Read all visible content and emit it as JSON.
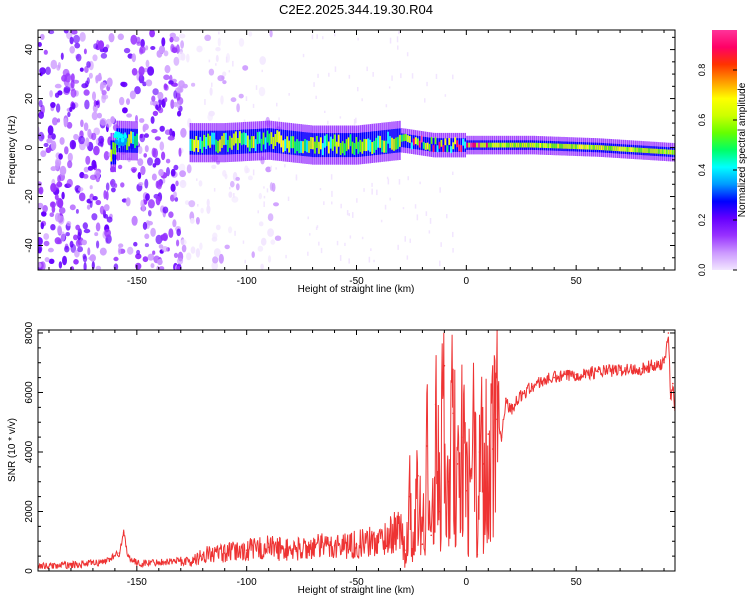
{
  "page_title": "C2E2.2025.344.19.30.R04",
  "chart_data": [
    {
      "type": "heatmap",
      "title": "C2E2.2025.344.19.30.R04",
      "xlabel": "Height of straight line (km)",
      "ylabel": "Frequency (Hz)",
      "xlim": [
        -195,
        95
      ],
      "ylim": [
        -50,
        48
      ],
      "xticks": [
        -150,
        -100,
        -50,
        0,
        50
      ],
      "yticks": [
        -40,
        -20,
        0,
        20,
        40
      ],
      "colorbar": {
        "label": "Normalized spectral amplitude",
        "range": [
          0.0,
          0.96
        ],
        "ticks": [
          "0.0",
          "0.2",
          "0.4",
          "0.6",
          "0.8"
        ],
        "tick_values": [
          0.0,
          0.2,
          0.4,
          0.6,
          0.8
        ],
        "colormap": [
          "#f2e6ff",
          "#cc99ff",
          "#9933ff",
          "#6600ff",
          "#0000ff",
          "#0099ff",
          "#00ffff",
          "#00ff66",
          "#66ff00",
          "#ccff00",
          "#ffff00",
          "#ff9900",
          "#ff3300",
          "#ff0066",
          "#ff3399"
        ]
      },
      "ridge": {
        "x": [
          -160,
          -125,
          -110,
          -90,
          -70,
          -50,
          -30,
          -15,
          -5,
          0,
          5,
          30,
          60,
          95
        ],
        "frequency": [
          3,
          2,
          2,
          3,
          1,
          1,
          3,
          1,
          1,
          1,
          1,
          1,
          0,
          -2
        ]
      }
    },
    {
      "type": "line",
      "xlabel": "Height of straight line (km)",
      "ylabel": "SNR (10 * v/v)",
      "xlim": [
        -195,
        95
      ],
      "ylim": [
        0,
        8100
      ],
      "xticks": [
        -150,
        -100,
        -50,
        0,
        50
      ],
      "yticks": [
        0,
        2000,
        4000,
        6000,
        8000
      ],
      "color": "#ee3333",
      "series": [
        {
          "name": "SNR",
          "x": [
            -195,
            -180,
            -165,
            -158,
            -156,
            -154,
            -150,
            -140,
            -130,
            -125,
            -120,
            -110,
            -100,
            -90,
            -80,
            -70,
            -60,
            -50,
            -40,
            -35,
            -30,
            -28,
            -26,
            -24,
            -22,
            -20,
            -18,
            -16,
            -14,
            -12,
            -10,
            -8,
            -6,
            -4,
            -2,
            0,
            2,
            4,
            5,
            6,
            8,
            10,
            12,
            14,
            16,
            18,
            20,
            22,
            25,
            30,
            35,
            40,
            50,
            60,
            70,
            80,
            85,
            90,
            92,
            93,
            94,
            95
          ],
          "values": [
            150,
            200,
            300,
            600,
            1300,
            500,
            250,
            300,
            350,
            300,
            550,
            600,
            700,
            800,
            700,
            800,
            850,
            900,
            1000,
            1200,
            1400,
            700,
            2500,
            600,
            3200,
            900,
            4200,
            1200,
            5600,
            2000,
            6900,
            3000,
            5300,
            3600,
            4500,
            2700,
            3200,
            4500,
            550,
            4000,
            3600,
            4600,
            4100,
            5100,
            4500,
            5800,
            5400,
            5600,
            5900,
            6200,
            6400,
            6500,
            6600,
            6700,
            6750,
            6800,
            6900,
            7000,
            8000,
            5800,
            6300,
            5400
          ]
        }
      ]
    }
  ]
}
